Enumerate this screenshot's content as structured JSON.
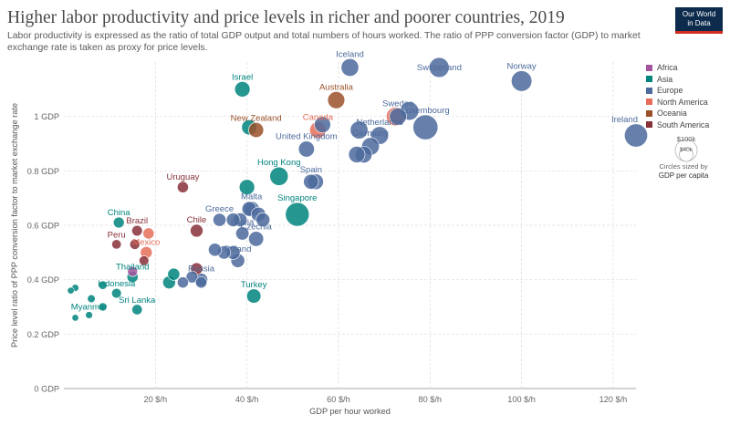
{
  "header": {
    "title": "Higher labor productivity and price levels in richer and poorer countries, 2019",
    "subtitle": "Labor productivity is expressed as the ratio of total GDP output and total numbers of hours worked. The ratio of PPP conversion factor (GDP) to market exchange rate is taken as proxy for price levels.",
    "logo_line1": "Our World",
    "logo_line2": "in Data"
  },
  "legend": {
    "items": [
      {
        "label": "Africa",
        "color": "#a2559c"
      },
      {
        "label": "Asia",
        "color": "#00847e"
      },
      {
        "label": "Europe",
        "color": "#4c6a9c"
      },
      {
        "label": "North America",
        "color": "#e56e5a"
      },
      {
        "label": "Oceania",
        "color": "#9a5129"
      },
      {
        "label": "South America",
        "color": "#883039"
      }
    ],
    "size_big": "$100k",
    "size_small": "$40k",
    "size_caption": "Circles sized by",
    "size_metric": "GDP per capita"
  },
  "chart_data": {
    "type": "scatter",
    "title": "Higher labor productivity and price levels in richer and poorer countries, 2019",
    "xlabel": "GDP per hour worked",
    "ylabel": "Price level ratio of PPP conversion factor to market exchange rate",
    "xlim": [
      0,
      125
    ],
    "ylim": [
      0,
      1.2
    ],
    "x_ticks": [
      20,
      40,
      60,
      80,
      100,
      120
    ],
    "x_tick_labels": [
      "20 $/h",
      "40 $/h",
      "60 $/h",
      "80 $/h",
      "100 $/h",
      "120 $/h"
    ],
    "y_ticks": [
      0,
      0.2,
      0.4,
      0.6,
      0.8,
      1.0
    ],
    "y_tick_labels": [
      "0 GDP",
      "0.2 GDP",
      "0.4 GDP",
      "0.6 GDP",
      "0.8 GDP",
      "1 GDP"
    ],
    "grid": true,
    "legend_position": "right",
    "size_metric": "GDP per capita",
    "points": [
      {
        "label": "Iceland",
        "x": 62.5,
        "y": 1.18,
        "size": 55,
        "region": "Europe",
        "show_label": true
      },
      {
        "label": "Switzerland",
        "x": 82,
        "y": 1.18,
        "size": 70,
        "region": "Europe",
        "show_label": true
      },
      {
        "label": "Norway",
        "x": 100,
        "y": 1.13,
        "size": 75,
        "region": "Europe",
        "show_label": true
      },
      {
        "label": "Israel",
        "x": 39,
        "y": 1.1,
        "size": 42,
        "region": "Asia",
        "show_label": true
      },
      {
        "label": "Australia",
        "x": 59.5,
        "y": 1.06,
        "size": 52,
        "region": "Oceania",
        "show_label": true
      },
      {
        "label": "Ireland",
        "x": 125,
        "y": 0.93,
        "size": 95,
        "region": "Europe",
        "show_label": true
      },
      {
        "label": "Luxembourg",
        "x": 79,
        "y": 0.96,
        "size": 110,
        "region": "Europe",
        "show_label": true
      },
      {
        "label": "Denmark",
        "x": 75.5,
        "y": 1.02,
        "size": 60,
        "region": "Europe",
        "show_label": false
      },
      {
        "label": "Sweden",
        "x": 73,
        "y": 1.0,
        "size": 52,
        "region": "Europe",
        "show_label": true
      },
      {
        "label": "United States",
        "x": 72.5,
        "y": 1.0,
        "size": 62,
        "region": "North America",
        "show_label": false
      },
      {
        "label": "New Zealand",
        "x": 42,
        "y": 0.95,
        "size": 40,
        "region": "Oceania",
        "show_label": true
      },
      {
        "label": "Japan",
        "x": 40.5,
        "y": 0.96,
        "size": 41,
        "region": "Asia",
        "show_label": false
      },
      {
        "label": "Canada",
        "x": 55.5,
        "y": 0.95,
        "size": 48,
        "region": "North America",
        "show_label": true
      },
      {
        "label": "Finland",
        "x": 56.5,
        "y": 0.97,
        "size": 47,
        "region": "Europe",
        "show_label": false
      },
      {
        "label": "Austria",
        "x": 64.5,
        "y": 0.95,
        "size": 56,
        "region": "Europe",
        "show_label": false
      },
      {
        "label": "Netherlands",
        "x": 69,
        "y": 0.93,
        "size": 56,
        "region": "Europe",
        "show_label": true
      },
      {
        "label": "United Kingdom",
        "x": 53,
        "y": 0.88,
        "size": 45,
        "region": "Europe",
        "show_label": true
      },
      {
        "label": "Germany",
        "x": 67,
        "y": 0.89,
        "size": 55,
        "region": "Europe",
        "show_label": true
      },
      {
        "label": "Belgium",
        "x": 65.5,
        "y": 0.86,
        "size": 50,
        "region": "Europe",
        "show_label": false
      },
      {
        "label": "France",
        "x": 64,
        "y": 0.86,
        "size": 48,
        "region": "Europe",
        "show_label": false
      },
      {
        "label": "Hong Kong",
        "x": 47,
        "y": 0.78,
        "size": 60,
        "region": "Asia",
        "show_label": true
      },
      {
        "label": "Italy",
        "x": 55,
        "y": 0.76,
        "size": 44,
        "region": "Europe",
        "show_label": false
      },
      {
        "label": "Spain",
        "x": 54,
        "y": 0.76,
        "size": 40,
        "region": "Europe",
        "show_label": true
      },
      {
        "label": "Singapore",
        "x": 51,
        "y": 0.64,
        "size": 100,
        "region": "Asia",
        "show_label": true
      },
      {
        "label": "South Korea",
        "x": 40,
        "y": 0.74,
        "size": 42,
        "region": "Asia",
        "show_label": false
      },
      {
        "label": "Malta",
        "x": 41,
        "y": 0.66,
        "size": 42,
        "region": "Europe",
        "show_label": true
      },
      {
        "label": "Greece",
        "x": 34,
        "y": 0.62,
        "size": 30,
        "region": "Europe",
        "show_label": true
      },
      {
        "label": "Slovenia",
        "x": 40.5,
        "y": 0.66,
        "size": 38,
        "region": "Europe",
        "show_label": false
      },
      {
        "label": "Portugal",
        "x": 37,
        "y": 0.62,
        "size": 33,
        "region": "Europe",
        "show_label": false
      },
      {
        "label": "Estonia",
        "x": 38.5,
        "y": 0.62,
        "size": 34,
        "region": "Europe",
        "show_label": false
      },
      {
        "label": "Slovakia",
        "x": 43.5,
        "y": 0.62,
        "size": 34,
        "region": "Europe",
        "show_label": false
      },
      {
        "label": "Lithuania",
        "x": 42.5,
        "y": 0.64,
        "size": 37,
        "region": "Europe",
        "show_label": false
      },
      {
        "label": "Latvia",
        "x": 39,
        "y": 0.57,
        "size": 31,
        "region": "Europe",
        "show_label": true
      },
      {
        "label": "Czechia",
        "x": 42,
        "y": 0.55,
        "size": 40,
        "region": "Europe",
        "show_label": true
      },
      {
        "label": "Poland",
        "x": 38,
        "y": 0.47,
        "size": 34,
        "region": "Europe",
        "show_label": true
      },
      {
        "label": "Hungary",
        "x": 35,
        "y": 0.5,
        "size": 31,
        "region": "Europe",
        "show_label": false
      },
      {
        "label": "Croatia",
        "x": 33,
        "y": 0.51,
        "size": 30,
        "region": "Europe",
        "show_label": false
      },
      {
        "label": "Romania",
        "x": 37,
        "y": 0.5,
        "size": 34,
        "region": "Europe",
        "show_label": false
      },
      {
        "label": "Bulgaria",
        "x": 28,
        "y": 0.41,
        "size": 25,
        "region": "Europe",
        "show_label": false
      },
      {
        "label": "Russia",
        "x": 30,
        "y": 0.4,
        "size": 30,
        "region": "Europe",
        "show_label": true
      },
      {
        "label": "Serbia",
        "x": 26,
        "y": 0.39,
        "size": 22,
        "region": "Europe",
        "show_label": false
      },
      {
        "label": "Montenegro",
        "x": 30,
        "y": 0.39,
        "size": 23,
        "region": "Europe",
        "show_label": false
      },
      {
        "label": "Turkey",
        "x": 41.5,
        "y": 0.34,
        "size": 36,
        "region": "Asia",
        "show_label": true
      },
      {
        "label": "Uruguay",
        "x": 26,
        "y": 0.74,
        "size": 22,
        "region": "South America",
        "show_label": true
      },
      {
        "label": "Chile",
        "x": 29,
        "y": 0.58,
        "size": 29,
        "region": "South America",
        "show_label": true
      },
      {
        "label": "Brazil",
        "x": 16,
        "y": 0.58,
        "size": 20,
        "region": "South America",
        "show_label": true
      },
      {
        "label": "Argentina",
        "x": 29,
        "y": 0.44,
        "size": 26,
        "region": "South America",
        "show_label": false
      },
      {
        "label": "Peru",
        "x": 11.5,
        "y": 0.53,
        "size": 16,
        "region": "South America",
        "show_label": true
      },
      {
        "label": "Colombia",
        "x": 15.5,
        "y": 0.53,
        "size": 18,
        "region": "South America",
        "show_label": false
      },
      {
        "label": "Ecuador",
        "x": 17.5,
        "y": 0.47,
        "size": 17,
        "region": "South America",
        "show_label": false
      },
      {
        "label": "Mexico",
        "x": 18,
        "y": 0.5,
        "size": 25,
        "region": "North America",
        "show_label": true
      },
      {
        "label": "Costa Rica",
        "x": 18.5,
        "y": 0.57,
        "size": 22,
        "region": "North America",
        "show_label": false
      },
      {
        "label": "China",
        "x": 12,
        "y": 0.61,
        "size": 21,
        "region": "Asia",
        "show_label": true
      },
      {
        "label": "Malaysia",
        "x": 23,
        "y": 0.39,
        "size": 29,
        "region": "Asia",
        "show_label": false
      },
      {
        "label": "Thailand",
        "x": 15,
        "y": 0.41,
        "size": 22,
        "region": "Asia",
        "show_label": true
      },
      {
        "label": "Indonesia",
        "x": 11.5,
        "y": 0.35,
        "size": 17,
        "region": "Asia",
        "show_label": true
      },
      {
        "label": "Sri Lanka",
        "x": 16,
        "y": 0.29,
        "size": 19,
        "region": "Asia",
        "show_label": true
      },
      {
        "label": "Philippines",
        "x": 8.5,
        "y": 0.38,
        "size": 13,
        "region": "Asia",
        "show_label": false
      },
      {
        "label": "Vietnam",
        "x": 6,
        "y": 0.33,
        "size": 11,
        "region": "Asia",
        "show_label": false
      },
      {
        "label": "India",
        "x": 8.5,
        "y": 0.3,
        "size": 12,
        "region": "Asia",
        "show_label": false
      },
      {
        "label": "Myanmar",
        "x": 5.5,
        "y": 0.27,
        "size": 9,
        "region": "Asia",
        "show_label": true
      },
      {
        "label": "Cambodia",
        "x": 2.5,
        "y": 0.26,
        "size": 8,
        "region": "Asia",
        "show_label": false
      },
      {
        "label": "Bangladesh",
        "x": 1.5,
        "y": 0.36,
        "size": 8,
        "region": "Asia",
        "show_label": false
      },
      {
        "label": "Pakistan",
        "x": 2.5,
        "y": 0.37,
        "size": 9,
        "region": "Asia",
        "show_label": false
      },
      {
        "label": "Egypt",
        "x": 15,
        "y": 0.43,
        "size": 18,
        "region": "Africa",
        "show_label": false
      },
      {
        "label": "Kazakhstan",
        "x": 24,
        "y": 0.42,
        "size": 26,
        "region": "Asia",
        "show_label": false
      }
    ]
  }
}
